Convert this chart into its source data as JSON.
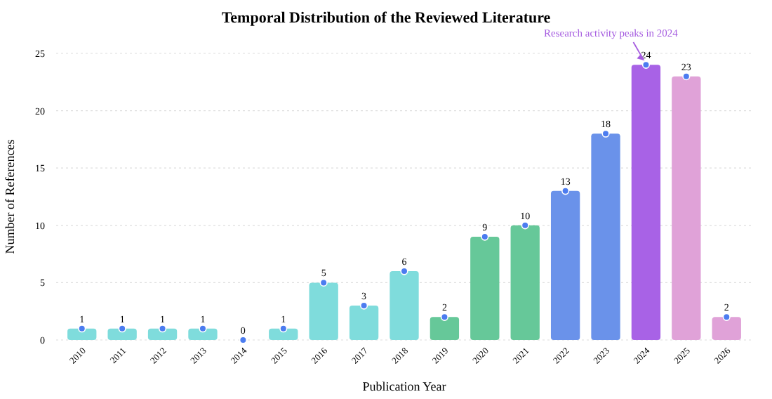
{
  "chart_data": {
    "type": "bar",
    "title": "Temporal Distribution of the Reviewed Literature",
    "xlabel": "Publication Year",
    "ylabel": "Number of References",
    "categories": [
      "2010",
      "2011",
      "2012",
      "2013",
      "2014",
      "2015",
      "2016",
      "2017",
      "2018",
      "2019",
      "2020",
      "2021",
      "2022",
      "2023",
      "2024",
      "2025",
      "2026"
    ],
    "series": [
      {
        "values": [
          1,
          1,
          1,
          1,
          0,
          1,
          5,
          3,
          6,
          2,
          9,
          10,
          13,
          18,
          24,
          23,
          2
        ],
        "value_labels": [
          "1",
          "1",
          "1",
          "1",
          "0",
          "1",
          "5",
          "3",
          "6",
          "2",
          "9",
          "10",
          "13",
          "18",
          "24",
          "23",
          "2"
        ],
        "colors": [
          "#7fdcdc",
          "#7fdcdc",
          "#7fdcdc",
          "#7fdcdc",
          "#7fdcdc",
          "#7fdcdc",
          "#7fdcdc",
          "#7fdcdc",
          "#7fdcdc",
          "#66c899",
          "#66c899",
          "#66c899",
          "#6a92ea",
          "#6a92ea",
          "#a862e6",
          "#e0a2d8",
          "#e0a2d8"
        ]
      },
      {
        "type": "scatter",
        "color": "#4c7cf0",
        "marker": "circle",
        "values": [
          1,
          1,
          1,
          1,
          0,
          1,
          5,
          3,
          6,
          2,
          9,
          10,
          13,
          18,
          24,
          23,
          2
        ]
      }
    ],
    "ylim": [
      0,
      25
    ],
    "yticks": [
      0,
      5,
      10,
      15,
      20,
      25
    ],
    "grid": "y",
    "annotations": [
      {
        "text": "Research activity peaks in 2024",
        "x": "2024",
        "y": 24
      }
    ]
  }
}
